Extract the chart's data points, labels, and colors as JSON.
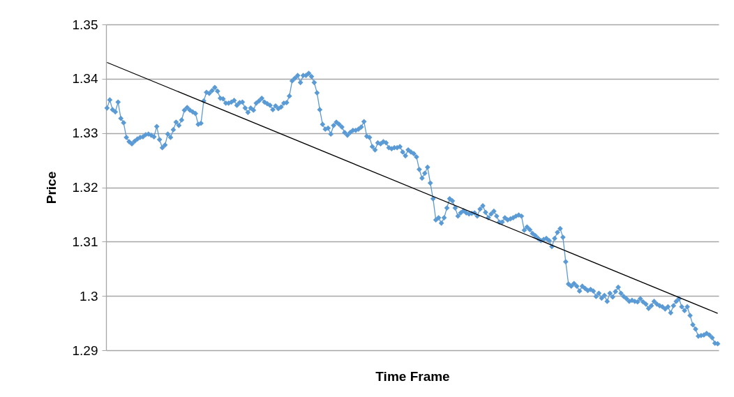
{
  "chart_data": {
    "type": "line",
    "xlabel": "Time Frame",
    "ylabel": "Price",
    "categories": [
      null,
      null,
      null,
      null,
      null,
      null,
      null,
      null,
      null,
      null,
      null,
      null,
      null,
      null,
      null,
      null,
      null,
      null,
      null,
      null,
      null,
      null,
      null,
      null,
      null,
      null,
      null,
      null,
      null,
      null,
      null,
      null,
      null,
      null,
      null,
      null,
      null,
      null,
      null,
      null,
      null,
      null,
      null,
      null,
      null,
      null,
      null,
      null,
      null,
      null,
      null,
      null,
      null,
      null,
      null,
      null,
      null,
      null,
      null,
      null,
      null,
      null,
      null,
      null,
      null,
      null,
      null,
      null,
      null,
      null,
      null,
      null,
      null,
      null,
      null,
      null,
      null,
      null,
      null,
      null,
      null,
      null,
      null,
      null,
      null,
      null,
      null,
      null,
      null,
      null,
      null,
      null,
      null,
      null,
      null,
      null,
      null,
      null,
      null,
      null,
      null,
      null,
      null,
      null,
      null,
      null,
      null,
      null,
      null,
      null,
      null,
      null,
      null,
      null,
      null,
      null,
      null,
      null,
      null,
      null,
      null,
      null,
      null,
      null,
      null,
      null,
      null,
      null,
      null,
      null,
      null,
      null,
      null,
      null,
      null,
      null,
      null,
      null,
      null,
      null,
      null,
      null,
      null,
      null,
      null,
      null,
      null,
      null,
      null,
      null,
      null,
      null,
      null,
      null,
      null,
      null,
      null,
      null,
      null,
      null,
      null,
      null,
      null,
      null,
      null,
      null,
      null,
      null,
      null,
      null,
      null,
      null,
      null,
      null,
      null,
      null,
      null,
      null,
      null,
      null,
      null,
      null,
      null,
      null,
      null,
      null,
      null,
      null,
      null,
      null,
      null,
      null,
      null,
      null,
      null,
      null,
      null,
      null,
      null,
      null,
      null,
      null,
      null,
      null,
      null,
      null,
      null,
      null,
      null,
      null,
      null,
      null,
      null,
      null,
      null,
      null,
      null,
      null,
      null,
      null,
      null,
      null
    ],
    "series": [
      {
        "color": "#5b9bd5",
        "marker": "diamond",
        "values": [
          1.3346,
          1.3361,
          1.3343,
          1.3339,
          1.3357,
          1.3327,
          1.3319,
          1.3292,
          1.3284,
          1.328,
          1.3285,
          1.3289,
          1.3292,
          1.3293,
          1.3297,
          1.3298,
          1.3296,
          1.3293,
          1.3312,
          1.3288,
          1.3273,
          1.3278,
          1.3298,
          1.3292,
          1.3306,
          1.332,
          1.3314,
          1.3324,
          1.3342,
          1.3347,
          1.3342,
          1.3339,
          1.3336,
          1.3316,
          1.3318,
          1.3359,
          1.3375,
          1.3373,
          1.3378,
          1.3384,
          1.3377,
          1.3364,
          1.3363,
          1.3355,
          1.3355,
          1.3357,
          1.336,
          1.3351,
          1.3356,
          1.3357,
          1.3346,
          1.3338,
          1.3346,
          1.3342,
          1.3355,
          1.3359,
          1.3364,
          1.3357,
          1.3354,
          1.3351,
          1.3343,
          1.335,
          1.3345,
          1.3348,
          1.3355,
          1.3356,
          1.3368,
          1.3396,
          1.3401,
          1.3406,
          1.3393,
          1.3406,
          1.3406,
          1.341,
          1.3404,
          1.3393,
          1.3374,
          1.3343,
          1.3316,
          1.3307,
          1.3309,
          1.3298,
          1.3314,
          1.332,
          1.3316,
          1.3311,
          1.3301,
          1.3296,
          1.3301,
          1.3305,
          1.3305,
          1.3307,
          1.3311,
          1.3321,
          1.3294,
          1.3292,
          1.3275,
          1.3269,
          1.3282,
          1.328,
          1.3284,
          1.3282,
          1.3273,
          1.3271,
          1.3273,
          1.3273,
          1.3275,
          1.3265,
          1.3258,
          1.3269,
          1.3265,
          1.3262,
          1.3256,
          1.3233,
          1.3217,
          1.3226,
          1.3237,
          1.3208,
          1.3179,
          1.314,
          1.3144,
          1.3134,
          1.3144,
          1.3162,
          1.3179,
          1.3175,
          1.3162,
          1.3147,
          1.3153,
          1.3157,
          1.3153,
          1.3151,
          1.3152,
          1.3153,
          1.3147,
          1.316,
          1.3166,
          1.3154,
          1.3144,
          1.3151,
          1.3156,
          1.3147,
          1.3136,
          1.3136,
          1.3144,
          1.314,
          1.3142,
          1.3144,
          1.3147,
          1.3149,
          1.3147,
          1.3121,
          1.3127,
          1.3122,
          1.3115,
          1.3111,
          1.3106,
          1.3102,
          1.3104,
          1.3106,
          1.3102,
          1.3091,
          1.3106,
          1.3117,
          1.3124,
          1.3108,
          1.3063,
          1.3022,
          1.3018,
          1.3023,
          1.3018,
          1.3009,
          1.3018,
          1.3014,
          1.301,
          1.3012,
          1.3009,
          1.2999,
          1.3005,
          1.2996,
          1.3001,
          1.299,
          1.3005,
          1.2998,
          1.3008,
          1.3016,
          1.3005,
          1.2999,
          1.2995,
          1.299,
          1.2992,
          1.299,
          1.2989,
          1.2995,
          1.2989,
          1.2985,
          1.2977,
          1.2982,
          1.299,
          1.2985,
          1.2982,
          1.298,
          1.2976,
          1.298,
          1.2969,
          1.2982,
          1.299,
          1.2995,
          1.298,
          1.2973,
          1.298,
          1.2964,
          1.2947,
          1.2939,
          1.2926,
          1.2927,
          1.2928,
          1.2931,
          1.2928,
          1.2923,
          1.2913,
          1.2912
        ]
      },
      {
        "color": "#000000",
        "marker": "none",
        "values": [
          1.343,
          null,
          null,
          null,
          null,
          null,
          null,
          null,
          null,
          null,
          null,
          null,
          null,
          null,
          null,
          null,
          null,
          null,
          null,
          null,
          null,
          null,
          null,
          null,
          null,
          null,
          null,
          null,
          null,
          null,
          null,
          null,
          null,
          null,
          null,
          null,
          null,
          null,
          null,
          null,
          null,
          null,
          null,
          null,
          null,
          null,
          null,
          null,
          null,
          null,
          null,
          null,
          null,
          null,
          null,
          null,
          null,
          null,
          null,
          null,
          null,
          null,
          null,
          null,
          null,
          null,
          null,
          null,
          null,
          null,
          null,
          null,
          null,
          null,
          null,
          null,
          null,
          null,
          null,
          null,
          null,
          null,
          null,
          null,
          null,
          null,
          null,
          null,
          null,
          null,
          null,
          null,
          null,
          null,
          null,
          null,
          null,
          null,
          null,
          null,
          null,
          null,
          null,
          null,
          null,
          null,
          null,
          null,
          null,
          null,
          null,
          null,
          null,
          null,
          null,
          null,
          null,
          null,
          null,
          null,
          null,
          null,
          null,
          null,
          null,
          null,
          null,
          null,
          null,
          null,
          null,
          null,
          null,
          null,
          null,
          null,
          null,
          null,
          null,
          null,
          null,
          null,
          null,
          null,
          null,
          null,
          null,
          null,
          null,
          null,
          null,
          null,
          null,
          null,
          null,
          null,
          null,
          null,
          null,
          null,
          null,
          null,
          null,
          null,
          null,
          null,
          null,
          null,
          null,
          null,
          null,
          null,
          null,
          null,
          null,
          null,
          null,
          null,
          null,
          null,
          null,
          null,
          null,
          null,
          null,
          null,
          null,
          null,
          null,
          null,
          null,
          null,
          null,
          null,
          null,
          null,
          null,
          null,
          null,
          null,
          null,
          null,
          null,
          null,
          null,
          null,
          null,
          null,
          null,
          null,
          null,
          null,
          null,
          null,
          null,
          null,
          null,
          null,
          null,
          null,
          null,
          1.2968
        ]
      }
    ],
    "ylim": [
      1.29,
      1.35
    ],
    "yticks": [
      {
        "value": 1.29,
        "label": "1.29"
      },
      {
        "value": 1.3,
        "label": "1.3"
      },
      {
        "value": 1.31,
        "label": "1.31"
      },
      {
        "value": 1.32,
        "label": "1.32"
      },
      {
        "value": 1.33,
        "label": "1.33"
      },
      {
        "value": 1.34,
        "label": "1.34"
      },
      {
        "value": 1.35,
        "label": "1.35"
      }
    ],
    "grid": "y",
    "tick_labels": "y"
  }
}
